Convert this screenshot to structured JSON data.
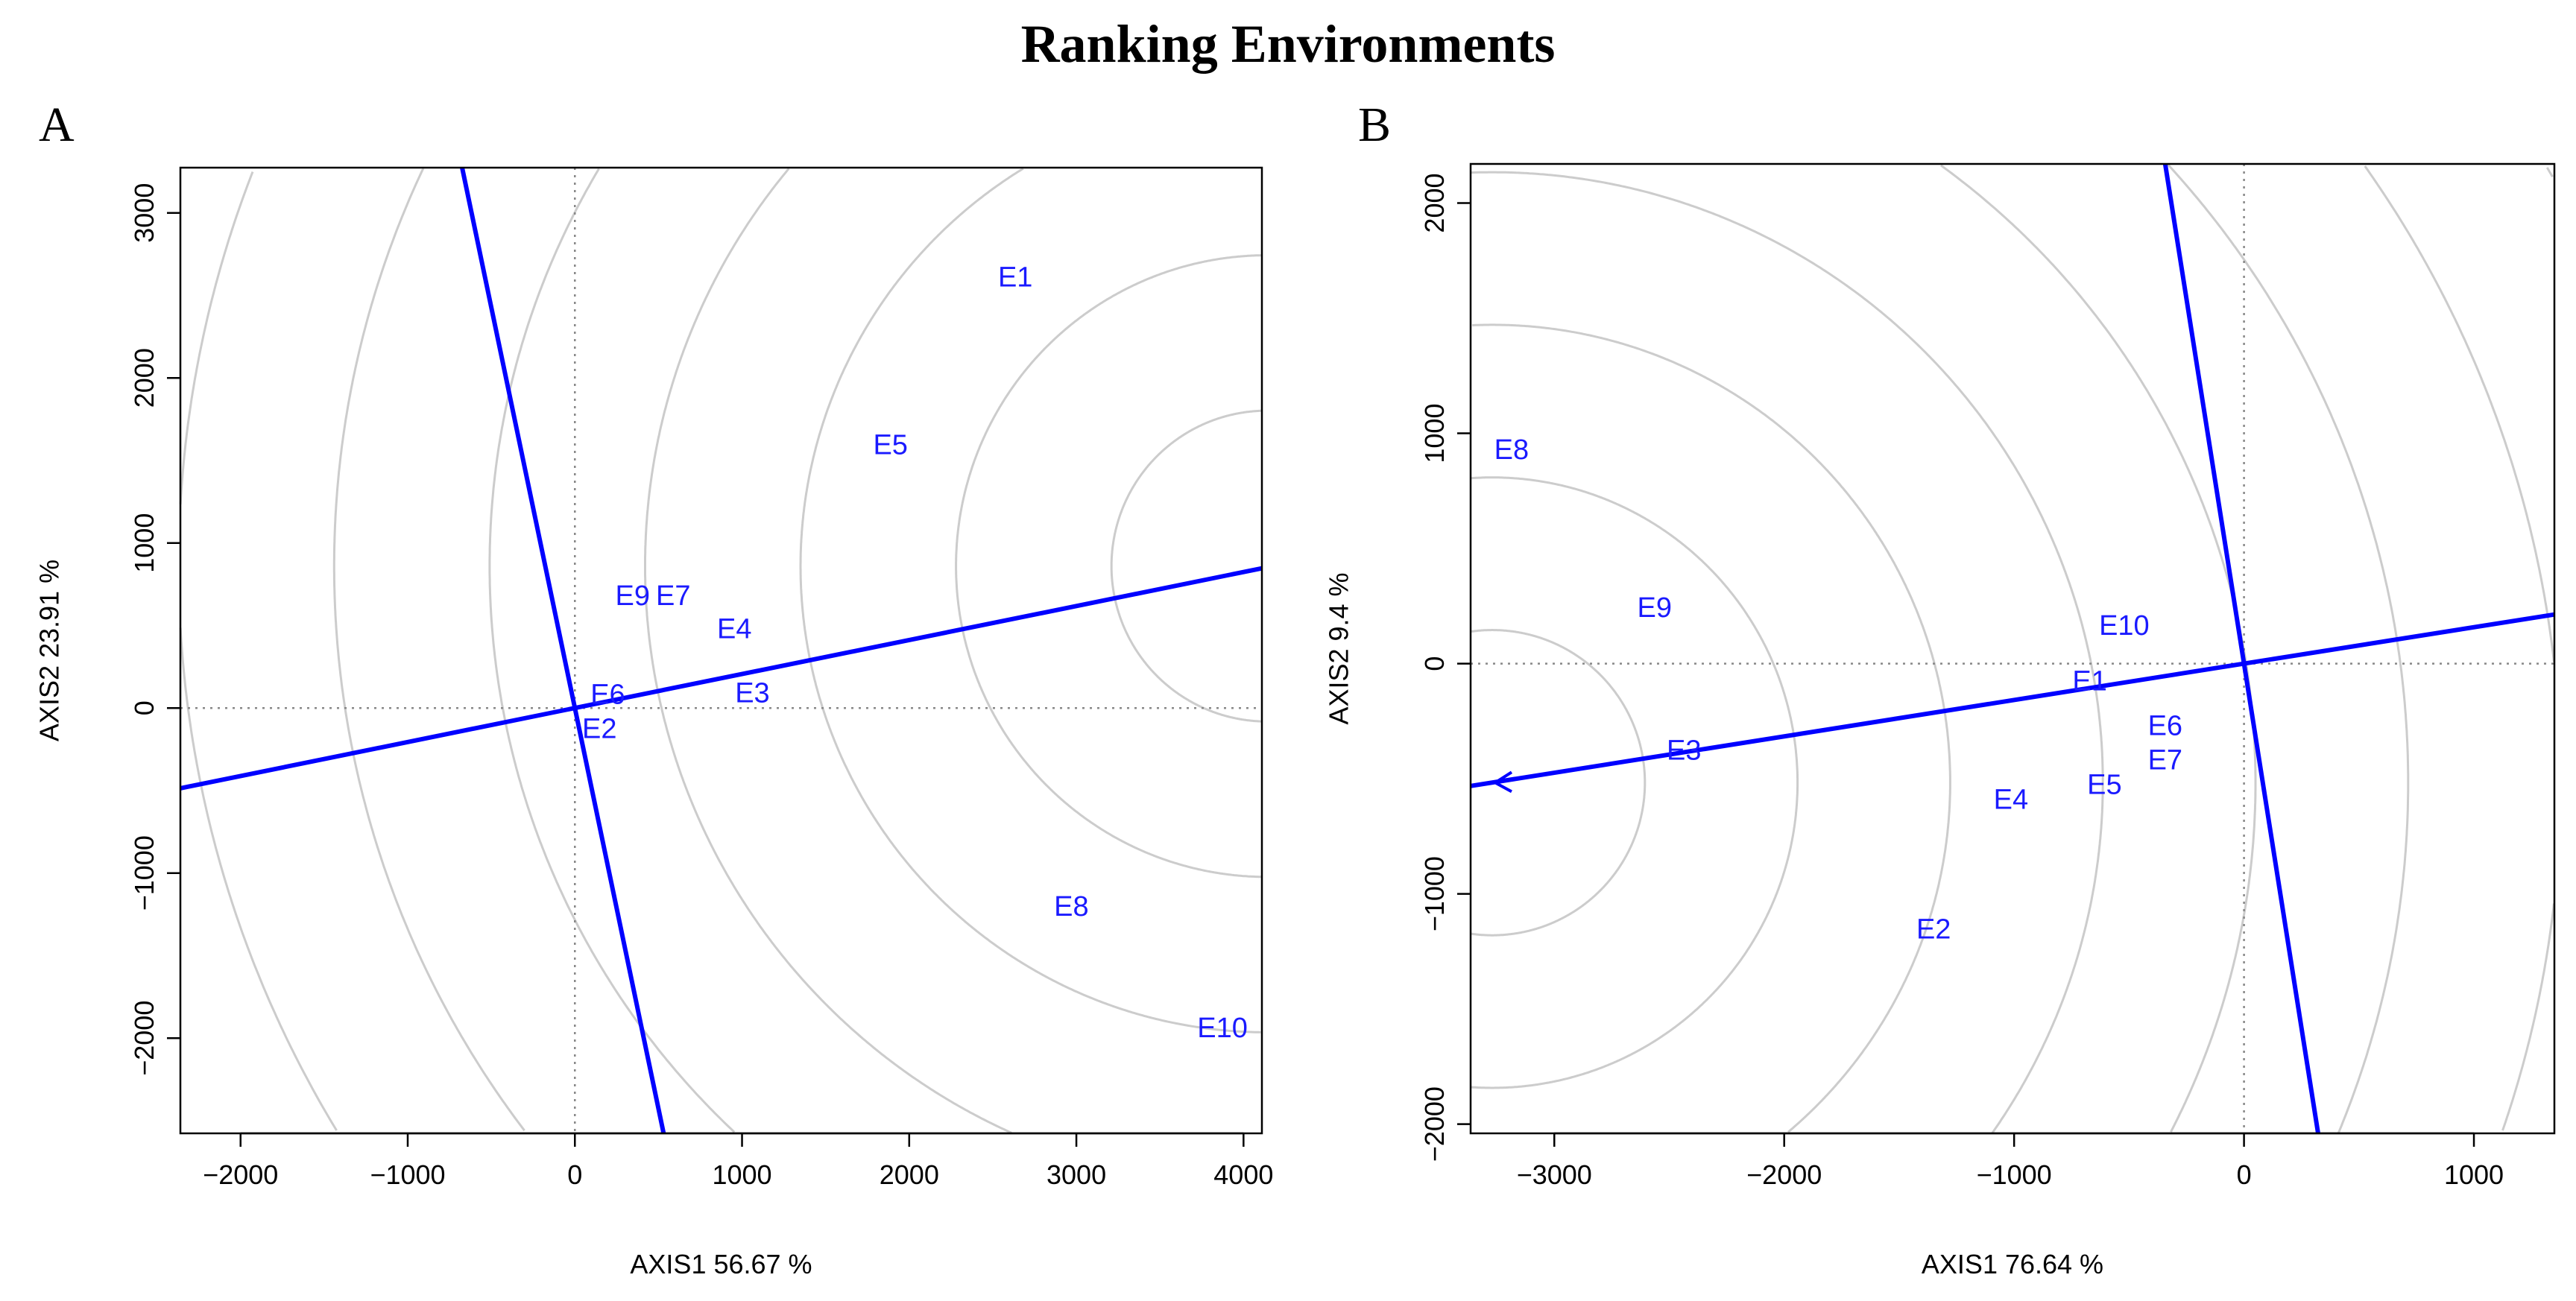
{
  "title": "Ranking Environments",
  "chart_data": [
    {
      "panel": "A",
      "type": "scatter",
      "xlabel": "AXIS1 56.67 %",
      "ylabel": "AXIS2 23.91 %",
      "xlim": [
        -2360,
        4110
      ],
      "ylim": [
        -2577,
        3274
      ],
      "xticks": [
        -2000,
        -1000,
        0,
        1000,
        2000,
        3000,
        4000
      ],
      "yticks": [
        -2000,
        -1000,
        0,
        1000,
        2000,
        3000
      ],
      "points": [
        {
          "label": "E1",
          "x": 2635,
          "y": 2607
        },
        {
          "label": "E5",
          "x": 1888,
          "y": 1592
        },
        {
          "label": "E9",
          "x": 393,
          "y": 677
        },
        {
          "label": "E7",
          "x": 541,
          "y": 677
        },
        {
          "label": "E4",
          "x": 954,
          "y": 478
        },
        {
          "label": "E3",
          "x": 1062,
          "y": 90
        },
        {
          "label": "E6",
          "x": 197,
          "y": 20
        },
        {
          "label": "E2",
          "x": 147,
          "y": -70
        },
        {
          "label": "E8",
          "x": 2970,
          "y": -1204
        },
        {
          "label": "E10",
          "x": 3874,
          "y": -1940
        }
      ],
      "aec_slope": 0.206,
      "circle_center": [
        4140,
        860
      ],
      "circle_step": 930,
      "circle_count": 8,
      "arrow": false
    },
    {
      "panel": "B",
      "type": "scatter",
      "xlabel": "AXIS1 76.64 %",
      "ylabel": "AXIS2 9.4 %",
      "xlim": [
        -3364,
        1350
      ],
      "ylim": [
        -2040,
        2170
      ],
      "xticks": [
        -3000,
        -2000,
        -1000,
        0,
        1000
      ],
      "yticks": [
        -2000,
        -1000,
        0,
        1000,
        2000
      ],
      "points": [
        {
          "label": "E8",
          "x": -3186,
          "y": 927
        },
        {
          "label": "E9",
          "x": -2564,
          "y": 242
        },
        {
          "label": "E10",
          "x": -521,
          "y": 164
        },
        {
          "label": "E1",
          "x": -671,
          "y": -78
        },
        {
          "label": "E3",
          "x": -2436,
          "y": -378
        },
        {
          "label": "E6",
          "x": -343,
          "y": -285
        },
        {
          "label": "E7",
          "x": -343,
          "y": -406
        },
        {
          "label": "E5",
          "x": -607,
          "y": -527
        },
        {
          "label": "E4",
          "x": -1014,
          "y": -592
        },
        {
          "label": "E2",
          "x": -1350,
          "y": -1155
        }
      ],
      "aec_slope": 0.158,
      "circle_center": [
        -3270,
        -517
      ],
      "circle_step": 664,
      "circle_count": 10,
      "arrow": true
    }
  ],
  "colors": {
    "label": "#1a1aff",
    "line": "#0000ff",
    "circle": "#cccccc",
    "reference": "#888888"
  }
}
